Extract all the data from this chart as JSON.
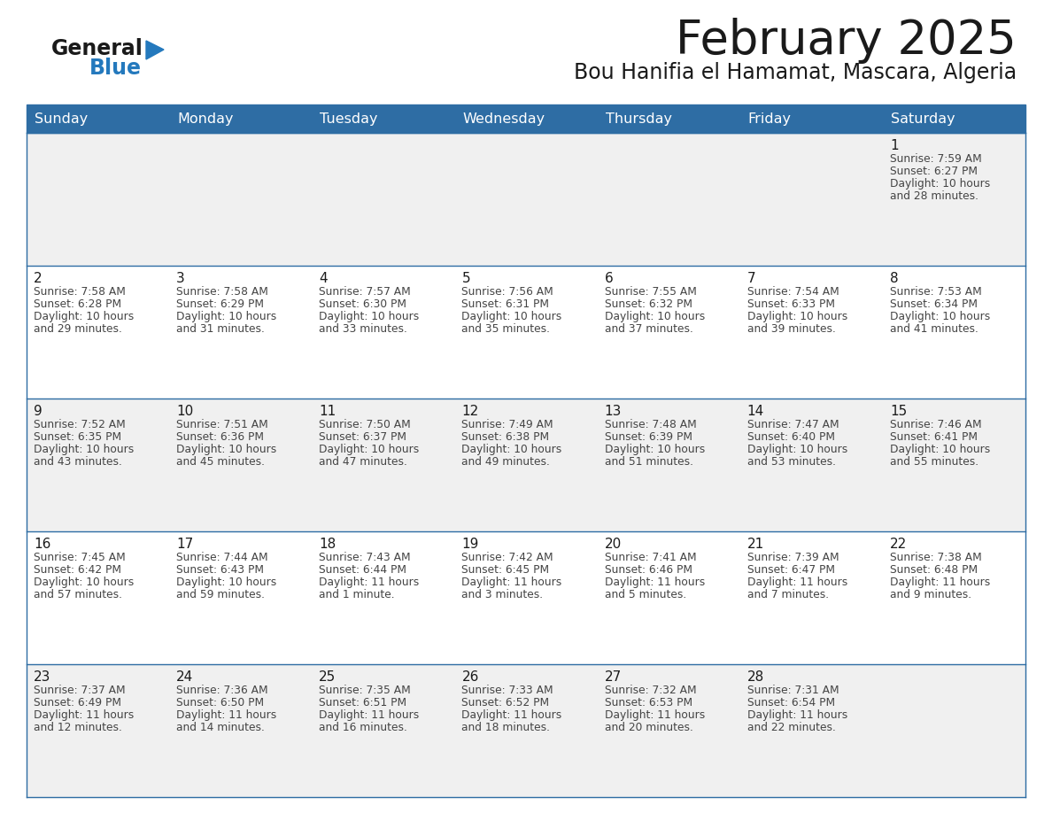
{
  "title": "February 2025",
  "subtitle": "Bou Hanifia el Hamamat, Mascara, Algeria",
  "header_bg_color": "#2E6DA4",
  "header_text_color": "#FFFFFF",
  "row_bg_color_odd": "#F0F0F0",
  "row_bg_color_even": "#FFFFFF",
  "cell_border_color": "#2E6DA4",
  "day_headers": [
    "Sunday",
    "Monday",
    "Tuesday",
    "Wednesday",
    "Thursday",
    "Friday",
    "Saturday"
  ],
  "weeks": [
    [
      {
        "day": null,
        "sunrise": null,
        "sunset": null,
        "daylight": null
      },
      {
        "day": null,
        "sunrise": null,
        "sunset": null,
        "daylight": null
      },
      {
        "day": null,
        "sunrise": null,
        "sunset": null,
        "daylight": null
      },
      {
        "day": null,
        "sunrise": null,
        "sunset": null,
        "daylight": null
      },
      {
        "day": null,
        "sunrise": null,
        "sunset": null,
        "daylight": null
      },
      {
        "day": null,
        "sunrise": null,
        "sunset": null,
        "daylight": null
      },
      {
        "day": 1,
        "sunrise": "7:59 AM",
        "sunset": "6:27 PM",
        "daylight": "10 hours\nand 28 minutes."
      }
    ],
    [
      {
        "day": 2,
        "sunrise": "7:58 AM",
        "sunset": "6:28 PM",
        "daylight": "10 hours\nand 29 minutes."
      },
      {
        "day": 3,
        "sunrise": "7:58 AM",
        "sunset": "6:29 PM",
        "daylight": "10 hours\nand 31 minutes."
      },
      {
        "day": 4,
        "sunrise": "7:57 AM",
        "sunset": "6:30 PM",
        "daylight": "10 hours\nand 33 minutes."
      },
      {
        "day": 5,
        "sunrise": "7:56 AM",
        "sunset": "6:31 PM",
        "daylight": "10 hours\nand 35 minutes."
      },
      {
        "day": 6,
        "sunrise": "7:55 AM",
        "sunset": "6:32 PM",
        "daylight": "10 hours\nand 37 minutes."
      },
      {
        "day": 7,
        "sunrise": "7:54 AM",
        "sunset": "6:33 PM",
        "daylight": "10 hours\nand 39 minutes."
      },
      {
        "day": 8,
        "sunrise": "7:53 AM",
        "sunset": "6:34 PM",
        "daylight": "10 hours\nand 41 minutes."
      }
    ],
    [
      {
        "day": 9,
        "sunrise": "7:52 AM",
        "sunset": "6:35 PM",
        "daylight": "10 hours\nand 43 minutes."
      },
      {
        "day": 10,
        "sunrise": "7:51 AM",
        "sunset": "6:36 PM",
        "daylight": "10 hours\nand 45 minutes."
      },
      {
        "day": 11,
        "sunrise": "7:50 AM",
        "sunset": "6:37 PM",
        "daylight": "10 hours\nand 47 minutes."
      },
      {
        "day": 12,
        "sunrise": "7:49 AM",
        "sunset": "6:38 PM",
        "daylight": "10 hours\nand 49 minutes."
      },
      {
        "day": 13,
        "sunrise": "7:48 AM",
        "sunset": "6:39 PM",
        "daylight": "10 hours\nand 51 minutes."
      },
      {
        "day": 14,
        "sunrise": "7:47 AM",
        "sunset": "6:40 PM",
        "daylight": "10 hours\nand 53 minutes."
      },
      {
        "day": 15,
        "sunrise": "7:46 AM",
        "sunset": "6:41 PM",
        "daylight": "10 hours\nand 55 minutes."
      }
    ],
    [
      {
        "day": 16,
        "sunrise": "7:45 AM",
        "sunset": "6:42 PM",
        "daylight": "10 hours\nand 57 minutes."
      },
      {
        "day": 17,
        "sunrise": "7:44 AM",
        "sunset": "6:43 PM",
        "daylight": "10 hours\nand 59 minutes."
      },
      {
        "day": 18,
        "sunrise": "7:43 AM",
        "sunset": "6:44 PM",
        "daylight": "11 hours\nand 1 minute."
      },
      {
        "day": 19,
        "sunrise": "7:42 AM",
        "sunset": "6:45 PM",
        "daylight": "11 hours\nand 3 minutes."
      },
      {
        "day": 20,
        "sunrise": "7:41 AM",
        "sunset": "6:46 PM",
        "daylight": "11 hours\nand 5 minutes."
      },
      {
        "day": 21,
        "sunrise": "7:39 AM",
        "sunset": "6:47 PM",
        "daylight": "11 hours\nand 7 minutes."
      },
      {
        "day": 22,
        "sunrise": "7:38 AM",
        "sunset": "6:48 PM",
        "daylight": "11 hours\nand 9 minutes."
      }
    ],
    [
      {
        "day": 23,
        "sunrise": "7:37 AM",
        "sunset": "6:49 PM",
        "daylight": "11 hours\nand 12 minutes."
      },
      {
        "day": 24,
        "sunrise": "7:36 AM",
        "sunset": "6:50 PM",
        "daylight": "11 hours\nand 14 minutes."
      },
      {
        "day": 25,
        "sunrise": "7:35 AM",
        "sunset": "6:51 PM",
        "daylight": "11 hours\nand 16 minutes."
      },
      {
        "day": 26,
        "sunrise": "7:33 AM",
        "sunset": "6:52 PM",
        "daylight": "11 hours\nand 18 minutes."
      },
      {
        "day": 27,
        "sunrise": "7:32 AM",
        "sunset": "6:53 PM",
        "daylight": "11 hours\nand 20 minutes."
      },
      {
        "day": 28,
        "sunrise": "7:31 AM",
        "sunset": "6:54 PM",
        "daylight": "11 hours\nand 22 minutes."
      },
      {
        "day": null,
        "sunrise": null,
        "sunset": null,
        "daylight": null
      }
    ]
  ],
  "logo_color_general": "#1a1a1a",
  "logo_color_blue": "#2479BD",
  "logo_triangle_color": "#2479BD",
  "title_fontsize": 38,
  "subtitle_fontsize": 17,
  "header_fontsize": 11.5,
  "day_num_fontsize": 11,
  "cell_text_fontsize": 8.8
}
